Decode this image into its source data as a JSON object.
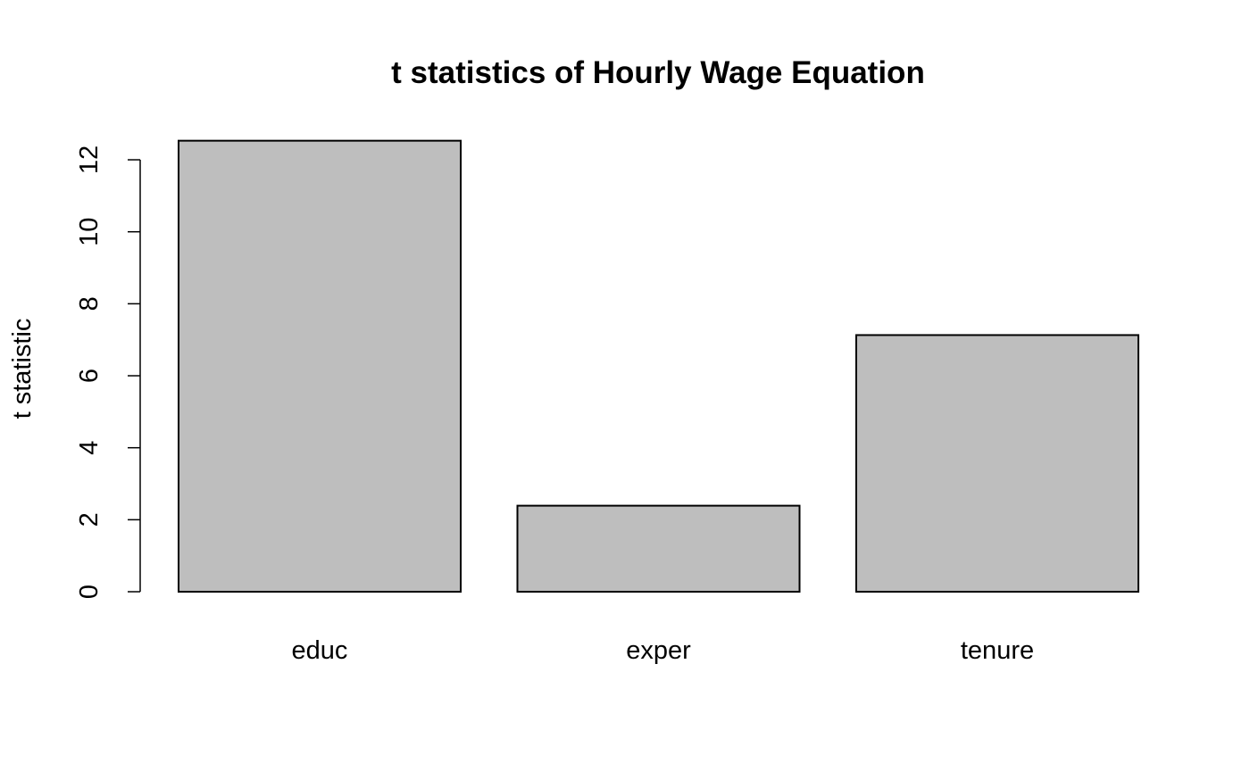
{
  "chart_data": {
    "type": "bar",
    "title": "t statistics of Hourly Wage Equation",
    "xlabel": "",
    "ylabel": "t statistic",
    "categories": [
      "educ",
      "exper",
      "tenure"
    ],
    "values": [
      12.53,
      2.39,
      7.13
    ],
    "yticks": [
      "0",
      "2",
      "4",
      "6",
      "8",
      "10",
      "12"
    ],
    "ylim": [
      0,
      13
    ],
    "grid": false,
    "legend": "none",
    "bar_color": "#bebebe",
    "border_color": "#000000"
  }
}
